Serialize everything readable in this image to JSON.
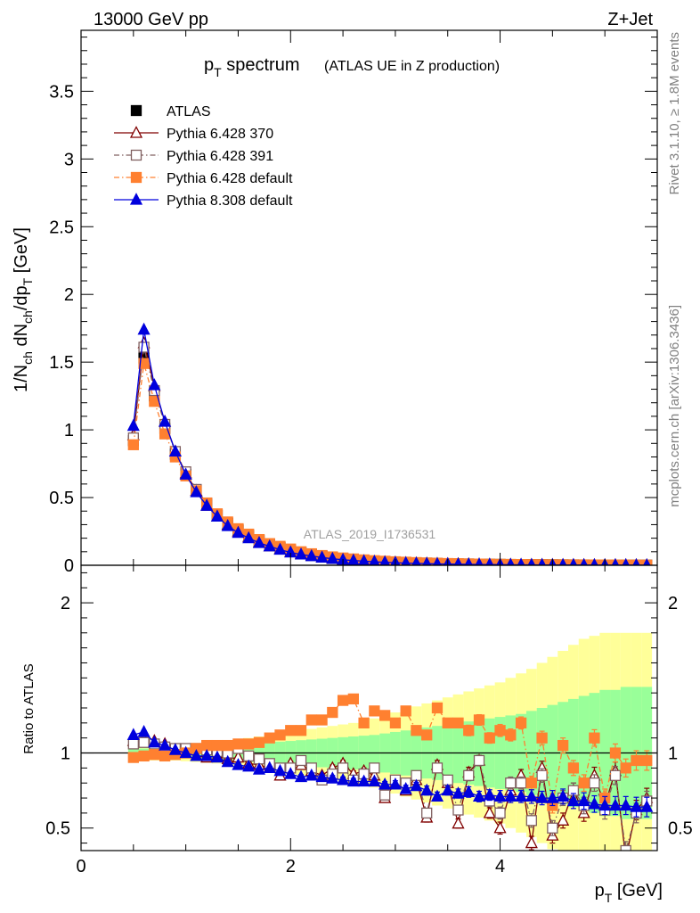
{
  "header": {
    "left": "13000 GeV pp",
    "right": "Z+Jet"
  },
  "side_labels": {
    "rivet": "Rivet 3.1.10, ≥ 1.8M events",
    "mcplots": "mcplots.cern.ch [arXiv:1306.3436]"
  },
  "analysis_id": "ATLAS_2019_I1736531",
  "chart_data": [
    {
      "type": "scatter",
      "panel": "main",
      "title": "p_T spectrum",
      "title_main": "p",
      "title_sub": "T",
      "title_rest": " spectrum",
      "subtitle": "(ATLAS UE in Z production)",
      "ylabel": "1/N_ch dN_ch/dp_T [GeV]",
      "xlim": [
        0,
        5.5
      ],
      "ylim": [
        0,
        3.95
      ],
      "yticks": [
        0,
        0.5,
        1,
        1.5,
        2,
        2.5,
        3,
        3.5
      ],
      "ytick_labels": [
        "0",
        "0.5",
        "1",
        "1.5",
        "2",
        "2.5",
        "3",
        "3.5"
      ],
      "legend_position": "top-left",
      "x": [
        0.5,
        0.6,
        0.7,
        0.8,
        0.9,
        1.0,
        1.1,
        1.2,
        1.3,
        1.4,
        1.5,
        1.6,
        1.7,
        1.8,
        1.9,
        2.0,
        2.1,
        2.2,
        2.3,
        2.4,
        2.5,
        2.6,
        2.7,
        2.8,
        2.9,
        3.0,
        3.1,
        3.2,
        3.3,
        3.4,
        3.5,
        3.6,
        3.7,
        3.8,
        3.9,
        4.0,
        4.1,
        4.2,
        4.3,
        4.4,
        4.5,
        4.6,
        4.7,
        4.8,
        4.9,
        5.0,
        5.1,
        5.2,
        5.3,
        5.4
      ],
      "series": [
        {
          "name": "ATLAS",
          "color": "#000000",
          "marker": "filled-square",
          "line": "none",
          "values": [
            0.92,
            1.53,
            1.25,
            1.01,
            0.82,
            0.67,
            0.55,
            0.45,
            0.37,
            0.31,
            0.26,
            0.22,
            0.185,
            0.155,
            0.13,
            0.11,
            0.095,
            0.08,
            0.068,
            0.058,
            0.05,
            0.043,
            0.037,
            0.032,
            0.028,
            0.024,
            0.021,
            0.018,
            0.016,
            0.014,
            0.012,
            0.011,
            0.0095,
            0.0085,
            0.0075,
            0.0066,
            0.0058,
            0.0051,
            0.0045,
            0.004,
            0.0036,
            0.0032,
            0.0028,
            0.0025,
            0.0022,
            0.002,
            0.0018,
            0.0016,
            0.0014,
            0.0013
          ]
        },
        {
          "name": "Pythia 6.428 370",
          "color": "#800000",
          "marker": "open-triangle",
          "line": "solid",
          "values": [
            0.96,
            1.64,
            1.32,
            1.06,
            0.84,
            0.68,
            0.55,
            0.44,
            0.36,
            0.3,
            0.25,
            0.21,
            0.17,
            0.14,
            0.12,
            0.1,
            0.085,
            0.072,
            0.06,
            0.05,
            0.043,
            0.037,
            0.031,
            0.027,
            0.023,
            0.02,
            0.017,
            0.015,
            0.013,
            0.011,
            0.0095,
            0.0085,
            0.0075,
            0.0066,
            0.0058,
            0.005,
            0.0044,
            0.0039,
            0.0035,
            0.0031,
            0.0027,
            0.0024,
            0.0021,
            0.0019,
            0.0017,
            0.0015,
            0.0013,
            0.0012,
            0.0011,
            0.001
          ]
        },
        {
          "name": "Pythia 6.428 391",
          "color": "#806060",
          "marker": "open-square",
          "line": "dashdot",
          "values": [
            0.94,
            1.61,
            1.29,
            1.04,
            0.84,
            0.69,
            0.56,
            0.46,
            0.37,
            0.31,
            0.26,
            0.21,
            0.175,
            0.145,
            0.12,
            0.1,
            0.085,
            0.072,
            0.06,
            0.05,
            0.043,
            0.037,
            0.031,
            0.027,
            0.023,
            0.02,
            0.017,
            0.015,
            0.013,
            0.011,
            0.0095,
            0.0085,
            0.0075,
            0.0066,
            0.0058,
            0.005,
            0.0044,
            0.0039,
            0.0035,
            0.0031,
            0.0027,
            0.0024,
            0.0021,
            0.0019,
            0.0017,
            0.0015,
            0.0013,
            0.0012,
            0.0011,
            0.001
          ]
        },
        {
          "name": "Pythia 6.428 default",
          "color": "#ff8030",
          "marker": "filled-square",
          "line": "dashdot",
          "values": [
            0.89,
            1.49,
            1.21,
            0.97,
            0.8,
            0.66,
            0.55,
            0.46,
            0.38,
            0.32,
            0.27,
            0.23,
            0.19,
            0.16,
            0.14,
            0.12,
            0.1,
            0.085,
            0.072,
            0.062,
            0.054,
            0.047,
            0.04,
            0.034,
            0.03,
            0.026,
            0.023,
            0.02,
            0.017,
            0.015,
            0.013,
            0.012,
            0.01,
            0.009,
            0.008,
            0.007,
            0.0063,
            0.0056,
            0.005,
            0.0044,
            0.0039,
            0.0035,
            0.0031,
            0.0028,
            0.0025,
            0.0022,
            0.002,
            0.0018,
            0.0016,
            0.0014
          ]
        },
        {
          "name": "Pythia 8.308 default",
          "color": "#0000dd",
          "marker": "filled-triangle",
          "line": "solid",
          "values": [
            1.03,
            1.74,
            1.33,
            1.06,
            0.84,
            0.67,
            0.54,
            0.44,
            0.36,
            0.29,
            0.24,
            0.2,
            0.165,
            0.14,
            0.115,
            0.095,
            0.08,
            0.068,
            0.057,
            0.048,
            0.041,
            0.035,
            0.03,
            0.026,
            0.022,
            0.019,
            0.016,
            0.014,
            0.012,
            0.01,
            0.009,
            0.008,
            0.007,
            0.006,
            0.0053,
            0.0047,
            0.0041,
            0.0036,
            0.0032,
            0.0028,
            0.0025,
            0.0022,
            0.0019,
            0.0017,
            0.0015,
            0.0013,
            0.0012,
            0.0011,
            0.001,
            0.0009
          ]
        }
      ]
    },
    {
      "type": "scatter",
      "panel": "ratio",
      "ylabel": "Ratio to ATLAS",
      "xlabel": "p_T [GeV]",
      "xlabel_main": "p",
      "xlabel_sub": "T",
      "xlabel_rest": " [GeV]",
      "xlim": [
        0,
        5.5
      ],
      "ylim": [
        0.35,
        2.25
      ],
      "xticks": [
        0,
        2,
        4
      ],
      "xtick_labels": [
        "0",
        "2",
        "4"
      ],
      "yticks": [
        0.5,
        1,
        2
      ],
      "ytick_labels": [
        "0.5",
        "1",
        "2"
      ],
      "reference_line": 1,
      "x": [
        0.5,
        0.6,
        0.7,
        0.8,
        0.9,
        1.0,
        1.1,
        1.2,
        1.3,
        1.4,
        1.5,
        1.6,
        1.7,
        1.8,
        1.9,
        2.0,
        2.1,
        2.2,
        2.3,
        2.4,
        2.5,
        2.6,
        2.7,
        2.8,
        2.9,
        3.0,
        3.1,
        3.2,
        3.3,
        3.4,
        3.5,
        3.6,
        3.7,
        3.8,
        3.9,
        4.0,
        4.1,
        4.2,
        4.3,
        4.4,
        4.5,
        4.6,
        4.7,
        4.8,
        4.9,
        5.0,
        5.1,
        5.2,
        5.3,
        5.4
      ],
      "band_stat_sys": [
        0.03,
        0.03,
        0.03,
        0.03,
        0.03,
        0.035,
        0.04,
        0.04,
        0.045,
        0.05,
        0.055,
        0.06,
        0.065,
        0.07,
        0.075,
        0.08,
        0.085,
        0.09,
        0.095,
        0.1,
        0.105,
        0.11,
        0.115,
        0.12,
        0.13,
        0.14,
        0.15,
        0.16,
        0.17,
        0.18,
        0.19,
        0.2,
        0.21,
        0.22,
        0.23,
        0.24,
        0.25,
        0.26,
        0.28,
        0.3,
        0.32,
        0.34,
        0.36,
        0.38,
        0.4,
        0.42,
        0.42,
        0.44,
        0.44,
        0.44
      ],
      "band_total": [
        0.05,
        0.05,
        0.05,
        0.05,
        0.05,
        0.055,
        0.06,
        0.065,
        0.07,
        0.08,
        0.09,
        0.1,
        0.11,
        0.12,
        0.13,
        0.14,
        0.15,
        0.16,
        0.17,
        0.18,
        0.19,
        0.2,
        0.21,
        0.23,
        0.25,
        0.27,
        0.29,
        0.31,
        0.33,
        0.35,
        0.37,
        0.39,
        0.41,
        0.43,
        0.45,
        0.47,
        0.5,
        0.53,
        0.56,
        0.6,
        0.64,
        0.68,
        0.72,
        0.76,
        0.78,
        0.8,
        0.8,
        0.8,
        0.8,
        0.8
      ],
      "series": [
        {
          "name": "Pythia 6.428 370",
          "color": "#800000",
          "marker": "open-triangle",
          "line": "solid",
          "values": [
            1.08,
            1.09,
            1.08,
            1.06,
            1.02,
            1.0,
            0.98,
            0.97,
            0.98,
            0.96,
            0.97,
            0.93,
            0.92,
            0.9,
            0.85,
            0.93,
            0.92,
            0.88,
            0.85,
            0.9,
            0.93,
            0.86,
            0.88,
            0.85,
            0.7,
            0.8,
            0.75,
            0.82,
            0.57,
            0.92,
            0.8,
            0.53,
            0.87,
            0.95,
            0.6,
            0.5,
            0.75,
            0.85,
            0.4,
            0.9,
            0.45,
            0.55,
            0.75,
            0.6,
            0.85,
            0.65,
            0.88,
            0.3,
            0.62,
            0.7
          ],
          "errors": [
            0.01,
            0.01,
            0.01,
            0.01,
            0.01,
            0.01,
            0.01,
            0.01,
            0.01,
            0.01,
            0.01,
            0.01,
            0.01,
            0.01,
            0.01,
            0.015,
            0.015,
            0.015,
            0.015,
            0.02,
            0.02,
            0.02,
            0.02,
            0.02,
            0.02,
            0.025,
            0.025,
            0.025,
            0.03,
            0.03,
            0.03,
            0.03,
            0.035,
            0.035,
            0.035,
            0.04,
            0.04,
            0.04,
            0.045,
            0.045,
            0.05,
            0.05,
            0.05,
            0.055,
            0.055,
            0.06,
            0.06,
            0.06,
            0.065,
            0.065
          ]
        },
        {
          "name": "Pythia 6.428 391",
          "color": "#806060",
          "marker": "open-square",
          "line": "dashdot",
          "values": [
            1.06,
            1.07,
            1.06,
            1.04,
            1.03,
            1.03,
            1.03,
            1.02,
            1.01,
            1.0,
            1.03,
            0.98,
            0.96,
            0.93,
            0.9,
            0.9,
            0.95,
            0.9,
            0.82,
            0.86,
            0.9,
            0.82,
            0.86,
            0.9,
            0.72,
            0.82,
            0.8,
            0.85,
            0.6,
            0.9,
            0.82,
            0.62,
            0.85,
            0.95,
            0.68,
            0.6,
            0.8,
            0.8,
            0.55,
            0.85,
            0.5,
            0.7,
            0.75,
            0.65,
            0.8,
            0.62,
            0.85,
            0.35,
            0.6,
            0.68
          ],
          "errors": [
            0.01,
            0.01,
            0.01,
            0.01,
            0.01,
            0.01,
            0.01,
            0.01,
            0.01,
            0.01,
            0.01,
            0.01,
            0.01,
            0.01,
            0.01,
            0.015,
            0.015,
            0.015,
            0.015,
            0.02,
            0.02,
            0.02,
            0.02,
            0.02,
            0.02,
            0.025,
            0.025,
            0.025,
            0.03,
            0.03,
            0.03,
            0.03,
            0.035,
            0.035,
            0.035,
            0.04,
            0.04,
            0.04,
            0.045,
            0.045,
            0.05,
            0.05,
            0.05,
            0.055,
            0.055,
            0.06,
            0.06,
            0.06,
            0.065,
            0.065
          ]
        },
        {
          "name": "Pythia 6.428 default",
          "color": "#ff8030",
          "marker": "filled-square",
          "line": "dashdot",
          "values": [
            0.97,
            0.98,
            0.99,
            0.98,
            0.99,
            1.0,
            1.03,
            1.05,
            1.05,
            1.05,
            1.06,
            1.06,
            1.07,
            1.1,
            1.12,
            1.15,
            1.15,
            1.22,
            1.22,
            1.27,
            1.35,
            1.36,
            1.2,
            1.28,
            1.25,
            1.2,
            1.28,
            1.15,
            1.12,
            1.3,
            1.2,
            1.2,
            1.15,
            1.22,
            1.1,
            1.15,
            1.12,
            1.2,
            0.8,
            1.1,
            0.65,
            1.05,
            0.9,
            0.8,
            1.1,
            0.7,
            1.0,
            0.9,
            0.95,
            0.95
          ],
          "errors": [
            0.01,
            0.01,
            0.01,
            0.01,
            0.01,
            0.01,
            0.01,
            0.01,
            0.01,
            0.01,
            0.01,
            0.01,
            0.01,
            0.01,
            0.01,
            0.015,
            0.015,
            0.015,
            0.015,
            0.02,
            0.02,
            0.02,
            0.02,
            0.02,
            0.02,
            0.025,
            0.025,
            0.025,
            0.03,
            0.03,
            0.03,
            0.03,
            0.035,
            0.035,
            0.035,
            0.04,
            0.04,
            0.04,
            0.045,
            0.045,
            0.05,
            0.05,
            0.05,
            0.055,
            0.055,
            0.06,
            0.06,
            0.06,
            0.065,
            0.065
          ]
        },
        {
          "name": "Pythia 8.308 default",
          "color": "#0000dd",
          "marker": "filled-triangle",
          "line": "solid",
          "values": [
            1.12,
            1.14,
            1.07,
            1.05,
            1.02,
            1.0,
            0.98,
            0.98,
            0.97,
            0.94,
            0.92,
            0.91,
            0.89,
            0.9,
            0.88,
            0.86,
            0.84,
            0.85,
            0.84,
            0.83,
            0.82,
            0.81,
            0.81,
            0.81,
            0.79,
            0.79,
            0.76,
            0.78,
            0.75,
            0.71,
            0.75,
            0.73,
            0.74,
            0.71,
            0.72,
            0.71,
            0.71,
            0.71,
            0.71,
            0.7,
            0.7,
            0.71,
            0.68,
            0.68,
            0.66,
            0.65,
            0.65,
            0.65,
            0.64,
            0.64
          ],
          "errors": [
            0.01,
            0.01,
            0.01,
            0.01,
            0.01,
            0.01,
            0.01,
            0.01,
            0.01,
            0.01,
            0.01,
            0.01,
            0.01,
            0.01,
            0.01,
            0.015,
            0.015,
            0.015,
            0.015,
            0.02,
            0.02,
            0.02,
            0.02,
            0.02,
            0.02,
            0.025,
            0.025,
            0.025,
            0.03,
            0.03,
            0.03,
            0.03,
            0.035,
            0.035,
            0.035,
            0.04,
            0.04,
            0.04,
            0.045,
            0.045,
            0.05,
            0.05,
            0.05,
            0.055,
            0.055,
            0.06,
            0.06,
            0.06,
            0.065,
            0.065
          ]
        }
      ]
    }
  ]
}
